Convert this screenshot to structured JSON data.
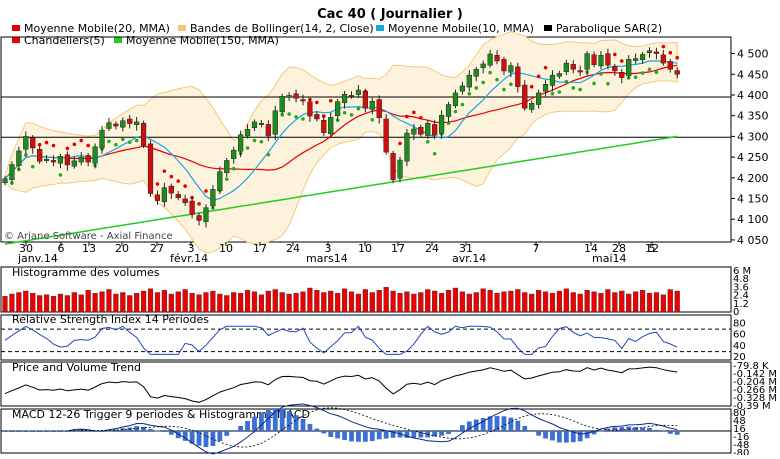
{
  "title": "Cac 40  ( Journalier )",
  "watermark": "© Ariane Software - Axial Finance",
  "legend": [
    {
      "label": "Moyenne Mobile(20, MMA)",
      "color": "#e60000"
    },
    {
      "label": "Bandes de Bollinger(14, 2, Close)",
      "color": "#f5c77a"
    },
    {
      "label": "Moyenne Mobile(10, MMA)",
      "color": "#1aa7e0"
    },
    {
      "label": "Parabolique SAR(2)",
      "color": "#000000"
    },
    {
      "label": "Chandeliers(5)",
      "color": "#e60000"
    },
    {
      "label": "Moyenne Mobile(150, MMA)",
      "color": "#22cc22"
    }
  ],
  "colors": {
    "up": "#1f8a1f",
    "down": "#cc1010",
    "ma20": "#e60000",
    "ma10": "#1aa7e0",
    "ma150": "#22cc22",
    "bollinger_fill": "#fdf3dc",
    "bollinger_line": "#f5c77a",
    "sar_up": "#22aa22",
    "sar_down": "#e60000",
    "volume": "#ee0000",
    "indicator_line": "#2244bb",
    "pvt_line": "#000000"
  },
  "chart_data": {
    "type": "candlestick",
    "x_tick_labels": [
      "30",
      "6",
      "13",
      "20",
      "27",
      "3",
      "10",
      "17",
      "24",
      "3",
      "10",
      "17",
      "24",
      "31",
      "7",
      "14",
      "28",
      "5",
      "12"
    ],
    "month_labels": [
      "janv.14",
      "févr.14",
      "mars14",
      "avr.14",
      "mai14"
    ],
    "y_tick_labels": [
      "4 500",
      "4 450",
      "4 400",
      "4 350",
      "4 300",
      "4 250",
      "4 200",
      "4 150",
      "4 100",
      "4 050"
    ],
    "ylim": [
      4045,
      4540
    ],
    "reference_levels": [
      4395,
      4298
    ],
    "closes": [
      4198,
      4232,
      4265,
      4300,
      4272,
      4240,
      4245,
      4238,
      4252,
      4231,
      4241,
      4250,
      4238,
      4275,
      4315,
      4333,
      4325,
      4338,
      4331,
      4335,
      4278,
      4162,
      4145,
      4176,
      4163,
      4152,
      4140,
      4112,
      4097,
      4128,
      4172,
      4215,
      4242,
      4267,
      4304,
      4317,
      4335,
      4332,
      4301,
      4362,
      4397,
      4399,
      4392,
      4387,
      4349,
      4342,
      4309,
      4346,
      4384,
      4402,
      4397,
      4412,
      4368,
      4385,
      4345,
      4262,
      4195,
      4243,
      4308,
      4318,
      4305,
      4332,
      4303,
      4351,
      4377,
      4405,
      4422,
      4448,
      4462,
      4475,
      4499,
      4482,
      4458,
      4471,
      4420,
      4368,
      4380,
      4405,
      4426,
      4448,
      4452,
      4477,
      4462,
      4458,
      4500,
      4473,
      4496,
      4472,
      4458,
      4442,
      4486,
      4488,
      4498,
      4507,
      4500,
      4477,
      4462,
      4450
    ],
    "volume_axis_labels": [
      "6 M",
      "4.8",
      "3.6",
      "2.4",
      "1.2",
      "0"
    ],
    "volumes": [
      2.1,
      2.4,
      2.6,
      2.8,
      2.5,
      2.2,
      2.3,
      2.1,
      2.4,
      2.2,
      2.6,
      2.3,
      2.9,
      2.5,
      2.7,
      3.0,
      2.4,
      2.6,
      2.2,
      2.5,
      2.8,
      3.1,
      2.6,
      2.9,
      2.4,
      2.7,
      3.0,
      2.5,
      2.3,
      2.6,
      2.8,
      2.4,
      2.2,
      2.6,
      2.5,
      2.9,
      2.7,
      2.3,
      2.8,
      3.0,
      2.6,
      2.4,
      2.5,
      2.7,
      3.2,
      2.9,
      2.6,
      2.8,
      2.5,
      3.1,
      2.7,
      2.4,
      3.0,
      2.6,
      2.9,
      3.3,
      2.8,
      2.5,
      2.7,
      2.4,
      2.6,
      3.0,
      2.8,
      2.5,
      2.9,
      3.2,
      2.7,
      2.4,
      2.6,
      3.1,
      2.9,
      2.5,
      2.7,
      2.8,
      3.0,
      2.6,
      2.4,
      2.9,
      2.7,
      2.5,
      2.8,
      3.1,
      2.6,
      2.4,
      2.9,
      2.7,
      2.5,
      3.0,
      2.6,
      2.8,
      2.4,
      2.7,
      2.9,
      2.5,
      2.6,
      2.3,
      3.0,
      2.8
    ],
    "panels": [
      {
        "title": "Histogramme des volumes",
        "axis_labels": [
          "6 M",
          "4.8",
          "3.6",
          "2.4",
          "1.2",
          "0"
        ]
      },
      {
        "title": "Relative Strength Index 14 Périodes",
        "axis_labels": [
          "80",
          "60",
          "40",
          "20"
        ],
        "ylim": [
          15,
          95
        ],
        "levels": [
          70,
          30
        ]
      },
      {
        "title": "Price and Volume Trend",
        "axis_labels": [
          "-79.8 K",
          "-0.142 M",
          "-0.204 M",
          "-0.266 M",
          "-0.328 M",
          "-0.39 M"
        ],
        "ylim": [
          -0.4,
          -0.07
        ]
      },
      {
        "title": "MACD 12-26   Trigger 9 periodes & Histogramme MACD",
        "axis_labels": [
          "80",
          "48",
          "16",
          "-16",
          "-48",
          "-80"
        ],
        "ylim": [
          -90,
          90
        ]
      }
    ]
  }
}
